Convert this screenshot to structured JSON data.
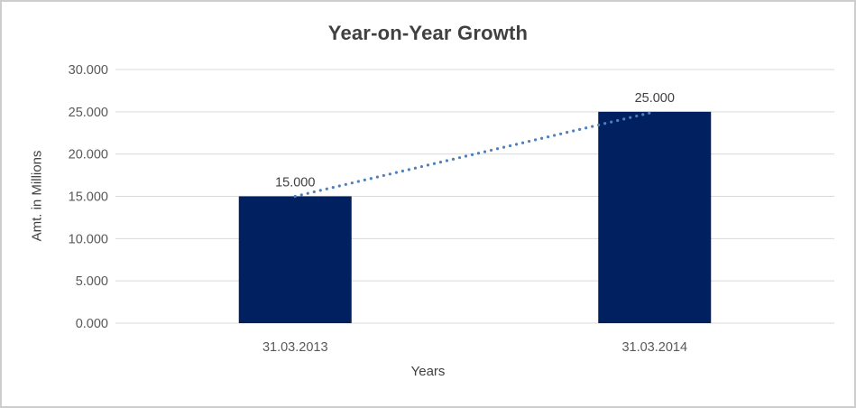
{
  "window": {
    "background": "#ffffff",
    "border_color": "#cdcdcd"
  },
  "chart_data": {
    "type": "bar",
    "title": "Year-on-Year Growth",
    "categories": [
      "31.03.2013",
      "31.03.2014"
    ],
    "values": [
      15,
      25
    ],
    "value_labels": [
      "15.000",
      "25.000"
    ],
    "xlabel": "Years",
    "ylabel": "Amt. in Millions",
    "ylim": [
      0,
      30
    ],
    "yticks": [
      0,
      5,
      10,
      15,
      20,
      25,
      30
    ],
    "ytick_labels": [
      "0.000",
      "5.000",
      "10.000",
      "15.000",
      "20.000",
      "25.000",
      "30.000"
    ],
    "grid": true,
    "legend": "none",
    "trendline": {
      "style": "dotted",
      "color": "#4f81bd",
      "connects": [
        "31.03.2013",
        "31.03.2014"
      ]
    },
    "colors": {
      "bar": "#002060",
      "gridline": "#d9d9d9",
      "title_text": "#404040",
      "axis_title_text": "#404040",
      "tick_text": "#595959",
      "data_label_text": "#404040"
    }
  }
}
